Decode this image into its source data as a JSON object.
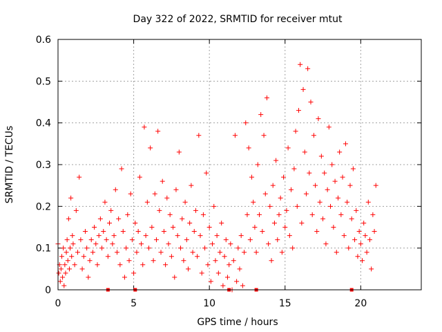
{
  "chart_data": {
    "type": "scatter",
    "title": "Day 322 of 2022, SRMTID for receiver mtut",
    "xlabel": "GPS time / hours",
    "ylabel": "SRMTID / TECUs",
    "xlim": [
      0,
      24
    ],
    "ylim": [
      0,
      0.6
    ],
    "x_ticks": [
      0,
      5,
      10,
      15,
      20
    ],
    "y_ticks": [
      0,
      0.1,
      0.2,
      0.3,
      0.4,
      0.5,
      0.6
    ],
    "y_tick_labels": [
      "0",
      "0.1",
      "0.2",
      "0.3",
      "0.4",
      "0.5",
      "0.6"
    ],
    "grid": true,
    "marker": "+",
    "series_color": "#ff0000",
    "series": [
      {
        "name": "SRMTID",
        "points": [
          [
            0.0,
            0.11
          ],
          [
            0.05,
            0.04
          ],
          [
            0.1,
            0.06
          ],
          [
            0.15,
            0.02
          ],
          [
            0.2,
            0.05
          ],
          [
            0.25,
            0.08
          ],
          [
            0.3,
            0.03
          ],
          [
            0.35,
            0.1
          ],
          [
            0.4,
            0.01
          ],
          [
            0.45,
            0.06
          ],
          [
            0.5,
            0.04
          ],
          [
            0.55,
            0.09
          ],
          [
            0.6,
            0.12
          ],
          [
            0.65,
            0.07
          ],
          [
            0.7,
            0.17
          ],
          [
            0.75,
            0.05
          ],
          [
            0.8,
            0.1
          ],
          [
            0.85,
            0.22
          ],
          [
            0.9,
            0.08
          ],
          [
            0.95,
            0.13
          ],
          [
            1.0,
            0.11
          ],
          [
            1.1,
            0.06
          ],
          [
            1.2,
            0.19
          ],
          [
            1.3,
            0.09
          ],
          [
            1.4,
            0.27
          ],
          [
            1.5,
            0.12
          ],
          [
            1.6,
            0.05
          ],
          [
            1.7,
            0.08
          ],
          [
            1.8,
            0.14
          ],
          [
            1.9,
            0.1
          ],
          [
            2.0,
            0.03
          ],
          [
            2.1,
            0.07
          ],
          [
            2.2,
            0.12
          ],
          [
            2.3,
            0.09
          ],
          [
            2.4,
            0.15
          ],
          [
            2.5,
            0.11
          ],
          [
            2.6,
            0.06
          ],
          [
            2.7,
            0.13
          ],
          [
            2.8,
            0.17
          ],
          [
            2.9,
            0.1
          ],
          [
            3.0,
            0.14
          ],
          [
            3.1,
            0.21
          ],
          [
            3.2,
            0.12
          ],
          [
            3.3,
            0.08
          ],
          [
            3.4,
            0.16
          ],
          [
            3.5,
            0.19
          ],
          [
            3.6,
            0.11
          ],
          [
            3.7,
            0.13
          ],
          [
            3.8,
            0.24
          ],
          [
            3.9,
            0.09
          ],
          [
            4.0,
            0.17
          ],
          [
            4.1,
            0.06
          ],
          [
            4.2,
            0.29
          ],
          [
            4.3,
            0.14
          ],
          [
            4.4,
            0.03
          ],
          [
            4.5,
            0.1
          ],
          [
            4.6,
            0.18
          ],
          [
            4.7,
            0.07
          ],
          [
            4.8,
            0.23
          ],
          [
            4.9,
            0.12
          ],
          [
            5.0,
            0.04
          ],
          [
            5.1,
            0.16
          ],
          [
            5.2,
            0.09
          ],
          [
            5.3,
            0.14
          ],
          [
            5.4,
            0.27
          ],
          [
            5.5,
            0.11
          ],
          [
            5.6,
            0.06
          ],
          [
            5.7,
            0.39
          ],
          [
            5.8,
            0.13
          ],
          [
            5.9,
            0.21
          ],
          [
            6.0,
            0.1
          ],
          [
            6.1,
            0.34
          ],
          [
            6.2,
            0.15
          ],
          [
            6.3,
            0.07
          ],
          [
            6.4,
            0.23
          ],
          [
            6.5,
            0.12
          ],
          [
            6.6,
            0.38
          ],
          [
            6.7,
            0.19
          ],
          [
            6.8,
            0.09
          ],
          [
            6.9,
            0.26
          ],
          [
            7.0,
            0.14
          ],
          [
            7.1,
            0.06
          ],
          [
            7.2,
            0.22
          ],
          [
            7.3,
            0.11
          ],
          [
            7.4,
            0.18
          ],
          [
            7.5,
            0.08
          ],
          [
            7.6,
            0.15
          ],
          [
            7.7,
            0.03
          ],
          [
            7.8,
            0.24
          ],
          [
            7.9,
            0.13
          ],
          [
            8.0,
            0.33
          ],
          [
            8.1,
            0.1
          ],
          [
            8.2,
            0.17
          ],
          [
            8.3,
            0.07
          ],
          [
            8.4,
            0.21
          ],
          [
            8.5,
            0.12
          ],
          [
            8.6,
            0.05
          ],
          [
            8.7,
            0.16
          ],
          [
            8.8,
            0.25
          ],
          [
            8.9,
            0.09
          ],
          [
            9.0,
            0.14
          ],
          [
            9.1,
            0.19
          ],
          [
            9.2,
            0.08
          ],
          [
            9.3,
            0.37
          ],
          [
            9.4,
            0.13
          ],
          [
            9.5,
            0.04
          ],
          [
            9.6,
            0.18
          ],
          [
            9.7,
            0.1
          ],
          [
            9.8,
            0.28
          ],
          [
            9.9,
            0.06
          ],
          [
            10.0,
            0.15
          ],
          [
            10.1,
            0.02
          ],
          [
            10.2,
            0.11
          ],
          [
            10.3,
            0.2
          ],
          [
            10.4,
            0.07
          ],
          [
            10.5,
            0.13
          ],
          [
            10.6,
            0.04
          ],
          [
            10.7,
            0.09
          ],
          [
            10.8,
            0.16
          ],
          [
            10.9,
            0.01
          ],
          [
            11.0,
            0.08
          ],
          [
            11.1,
            0.12
          ],
          [
            11.2,
            0.03
          ],
          [
            11.3,
            0.06
          ],
          [
            11.4,
            0.11
          ],
          [
            11.5,
            0.0
          ],
          [
            11.6,
            0.07
          ],
          [
            11.7,
            0.37
          ],
          [
            11.8,
            0.02
          ],
          [
            11.9,
            0.1
          ],
          [
            12.0,
            0.05
          ],
          [
            12.1,
            0.13
          ],
          [
            12.2,
            0.01
          ],
          [
            12.3,
            0.09
          ],
          [
            12.4,
            0.4
          ],
          [
            12.5,
            0.18
          ],
          [
            12.6,
            0.34
          ],
          [
            12.7,
            0.12
          ],
          [
            12.8,
            0.27
          ],
          [
            12.9,
            0.21
          ],
          [
            13.0,
            0.15
          ],
          [
            13.1,
            0.09
          ],
          [
            13.2,
            0.3
          ],
          [
            13.3,
            0.18
          ],
          [
            13.4,
            0.42
          ],
          [
            13.5,
            0.14
          ],
          [
            13.6,
            0.37
          ],
          [
            13.7,
            0.23
          ],
          [
            13.8,
            0.46
          ],
          [
            13.9,
            0.11
          ],
          [
            14.0,
            0.2
          ],
          [
            14.1,
            0.07
          ],
          [
            14.2,
            0.25
          ],
          [
            14.3,
            0.16
          ],
          [
            14.4,
            0.31
          ],
          [
            14.5,
            0.12
          ],
          [
            14.6,
            0.18
          ],
          [
            14.7,
            0.22
          ],
          [
            14.8,
            0.09
          ],
          [
            14.9,
            0.27
          ],
          [
            15.0,
            0.15
          ],
          [
            15.1,
            0.19
          ],
          [
            15.2,
            0.34
          ],
          [
            15.3,
            0.13
          ],
          [
            15.4,
            0.24
          ],
          [
            15.5,
            0.1
          ],
          [
            15.6,
            0.29
          ],
          [
            15.7,
            0.38
          ],
          [
            15.8,
            0.2
          ],
          [
            15.9,
            0.43
          ],
          [
            16.0,
            0.54
          ],
          [
            16.1,
            0.16
          ],
          [
            16.2,
            0.48
          ],
          [
            16.3,
            0.33
          ],
          [
            16.4,
            0.23
          ],
          [
            16.5,
            0.53
          ],
          [
            16.6,
            0.28
          ],
          [
            16.7,
            0.45
          ],
          [
            16.8,
            0.18
          ],
          [
            16.9,
            0.37
          ],
          [
            17.0,
            0.25
          ],
          [
            17.1,
            0.14
          ],
          [
            17.2,
            0.41
          ],
          [
            17.3,
            0.21
          ],
          [
            17.4,
            0.32
          ],
          [
            17.5,
            0.17
          ],
          [
            17.6,
            0.28
          ],
          [
            17.7,
            0.11
          ],
          [
            17.8,
            0.24
          ],
          [
            17.9,
            0.39
          ],
          [
            18.0,
            0.2
          ],
          [
            18.1,
            0.3
          ],
          [
            18.2,
            0.15
          ],
          [
            18.3,
            0.26
          ],
          [
            18.4,
            0.09
          ],
          [
            18.5,
            0.22
          ],
          [
            18.6,
            0.33
          ],
          [
            18.7,
            0.18
          ],
          [
            18.8,
            0.27
          ],
          [
            18.9,
            0.13
          ],
          [
            19.0,
            0.35
          ],
          [
            19.1,
            0.21
          ],
          [
            19.2,
            0.1
          ],
          [
            19.3,
            0.25
          ],
          [
            19.4,
            0.17
          ],
          [
            19.5,
            0.29
          ],
          [
            19.6,
            0.12
          ],
          [
            19.7,
            0.19
          ],
          [
            19.8,
            0.08
          ],
          [
            19.9,
            0.14
          ],
          [
            20.0,
            0.11
          ],
          [
            20.1,
            0.07
          ],
          [
            20.2,
            0.16
          ],
          [
            20.3,
            0.13
          ],
          [
            20.4,
            0.09
          ],
          [
            20.5,
            0.21
          ],
          [
            20.6,
            0.12
          ],
          [
            20.7,
            0.05
          ],
          [
            20.8,
            0.18
          ],
          [
            20.9,
            0.14
          ],
          [
            21.0,
            0.25
          ]
        ]
      }
    ],
    "axis_markers_x": [
      3.3,
      5.1,
      11.3,
      13.1,
      19.4
    ]
  }
}
